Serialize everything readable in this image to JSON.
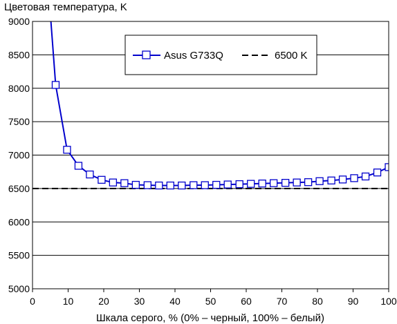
{
  "chart_data": {
    "type": "line",
    "ylabel": "Цветовая температура, K",
    "xlabel": "Шкала серого, % (0% – черный, 100% – белый)",
    "xlim": [
      0,
      100
    ],
    "ylim": [
      5000,
      9000
    ],
    "x_ticks": [
      "0",
      "10",
      "20",
      "30",
      "40",
      "50",
      "60",
      "70",
      "80",
      "90",
      "100"
    ],
    "y_ticks": [
      "5000",
      "5500",
      "6000",
      "6500",
      "7000",
      "7500",
      "8000",
      "8500",
      "9000"
    ],
    "grid": "horizontal",
    "legend_position": "top-center",
    "series": [
      {
        "name": "Asus G733Q",
        "color": "#0000cc",
        "marker": "square",
        "x": [
          3.2,
          6.5,
          9.7,
          12.9,
          16.1,
          19.4,
          22.6,
          25.8,
          29.0,
          32.3,
          35.5,
          38.7,
          41.9,
          45.2,
          48.4,
          51.6,
          54.8,
          58.1,
          61.3,
          64.5,
          67.7,
          71.0,
          74.2,
          77.4,
          80.6,
          83.9,
          87.1,
          90.3,
          93.5,
          96.8,
          100
        ],
        "y": [
          10400,
          8050,
          7080,
          6840,
          6710,
          6630,
          6590,
          6580,
          6555,
          6550,
          6545,
          6545,
          6545,
          6550,
          6550,
          6555,
          6560,
          6565,
          6570,
          6575,
          6580,
          6585,
          6590,
          6595,
          6610,
          6620,
          6635,
          6655,
          6680,
          6740,
          6820
        ]
      },
      {
        "name": "6500 K",
        "color": "#000000",
        "style": "dashed",
        "x": [
          0,
          100
        ],
        "y": [
          6500,
          6500
        ]
      }
    ]
  }
}
